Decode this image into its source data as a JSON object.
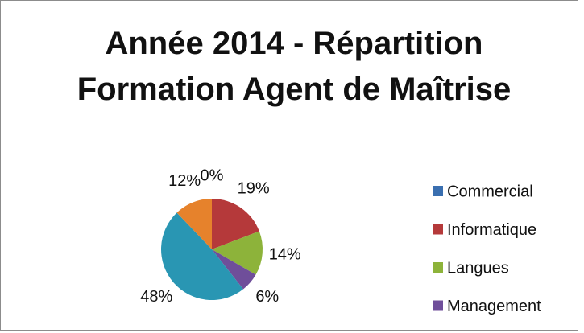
{
  "chart_data": {
    "type": "pie",
    "title": "Année 2014 - Répartition Formation Agent de Maîtrise",
    "categories": [
      "Commercial",
      "Informatique",
      "Langues",
      "Management",
      null,
      null
    ],
    "values": [
      0,
      19,
      14,
      6,
      48,
      12
    ],
    "value_labels": [
      "0%",
      "19%",
      "14%",
      "6%",
      "48%",
      "12%"
    ],
    "colors": [
      "#3a6fb0",
      "#b5393a",
      "#8db33a",
      "#6f4e9a",
      "#2996b3",
      "#e6822c"
    ],
    "legend": "right"
  }
}
